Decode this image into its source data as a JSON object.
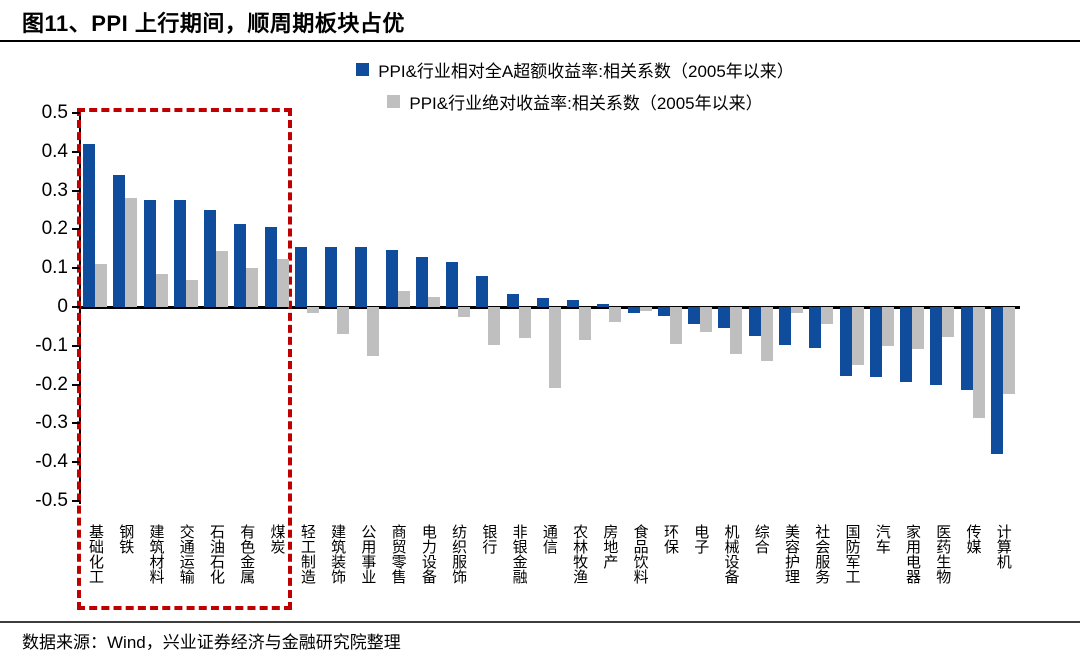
{
  "header": {
    "title": "图11、PPI 上行期间，顺周期板块占优"
  },
  "legend": {
    "items": [
      {
        "label": "PPI&行业相对全A超额收益率:相关系数（2005年以来）",
        "color": "#0F4C9C"
      },
      {
        "label": "PPI&行业绝对收益率:相关系数（2005年以来）",
        "color": "#BFBFBF"
      }
    ]
  },
  "chart_data": {
    "type": "bar",
    "title": "图11、PPI 上行期间，顺周期板块占优",
    "categories": [
      "基础化工",
      "钢铁",
      "建筑材料",
      "交通运输",
      "石油石化",
      "有色金属",
      "煤炭",
      "轻工制造",
      "建筑装饰",
      "公用事业",
      "商贸零售",
      "电力设备",
      "纺织服饰",
      "银行",
      "非银金融",
      "通信",
      "农林牧渔",
      "房地产",
      "食品饮料",
      "环保",
      "电子",
      "机械设备",
      "综合",
      "美容护理",
      "社会服务",
      "国防军工",
      "汽车",
      "家用电器",
      "医药生物",
      "传媒",
      "计算机"
    ],
    "series": [
      {
        "name": "PPI&行业相对全A超额收益率:相关系数（2005年以来）",
        "color": "#0F4C9C",
        "values": [
          0.42,
          0.34,
          0.275,
          0.275,
          0.25,
          0.215,
          0.205,
          0.155,
          0.155,
          0.155,
          0.148,
          0.13,
          0.115,
          0.08,
          0.033,
          0.023,
          0.017,
          0.008,
          -0.015,
          -0.023,
          -0.043,
          -0.055,
          -0.075,
          -0.098,
          -0.105,
          -0.178,
          -0.181,
          -0.194,
          -0.2,
          -0.215,
          -0.378
        ]
      },
      {
        "name": "PPI&行业绝对收益率:相关系数（2005年以来）",
        "color": "#BFBFBF",
        "values": [
          0.11,
          0.28,
          0.085,
          0.07,
          0.145,
          0.1,
          0.125,
          -0.015,
          -0.07,
          -0.125,
          0.04,
          0.026,
          -0.027,
          -0.097,
          -0.08,
          -0.21,
          -0.084,
          -0.038,
          -0.01,
          -0.095,
          -0.064,
          -0.122,
          -0.14,
          -0.015,
          -0.045,
          -0.15,
          -0.1,
          -0.108,
          -0.078,
          -0.285,
          -0.225
        ]
      }
    ],
    "xlabel": "",
    "ylabel": "",
    "ylim": [
      -0.5,
      0.5
    ],
    "ytick_labels": [
      "0.5",
      "0.4",
      "0.3",
      "0.2",
      "0.1",
      "0",
      "-0.1",
      "-0.2",
      "-0.3",
      "-0.4",
      "-0.5"
    ],
    "grid": false,
    "legend_position": "top-center",
    "annotation": {
      "type": "dashed-box-highlight",
      "color": "#C00000",
      "highlighted_categories": [
        "基础化工",
        "钢铁",
        "建筑材料",
        "交通运输",
        "石油石化",
        "有色金属",
        "煤炭"
      ]
    }
  },
  "footer": {
    "source": "数据来源：Wind，兴业证券经济与金融研究院整理"
  }
}
